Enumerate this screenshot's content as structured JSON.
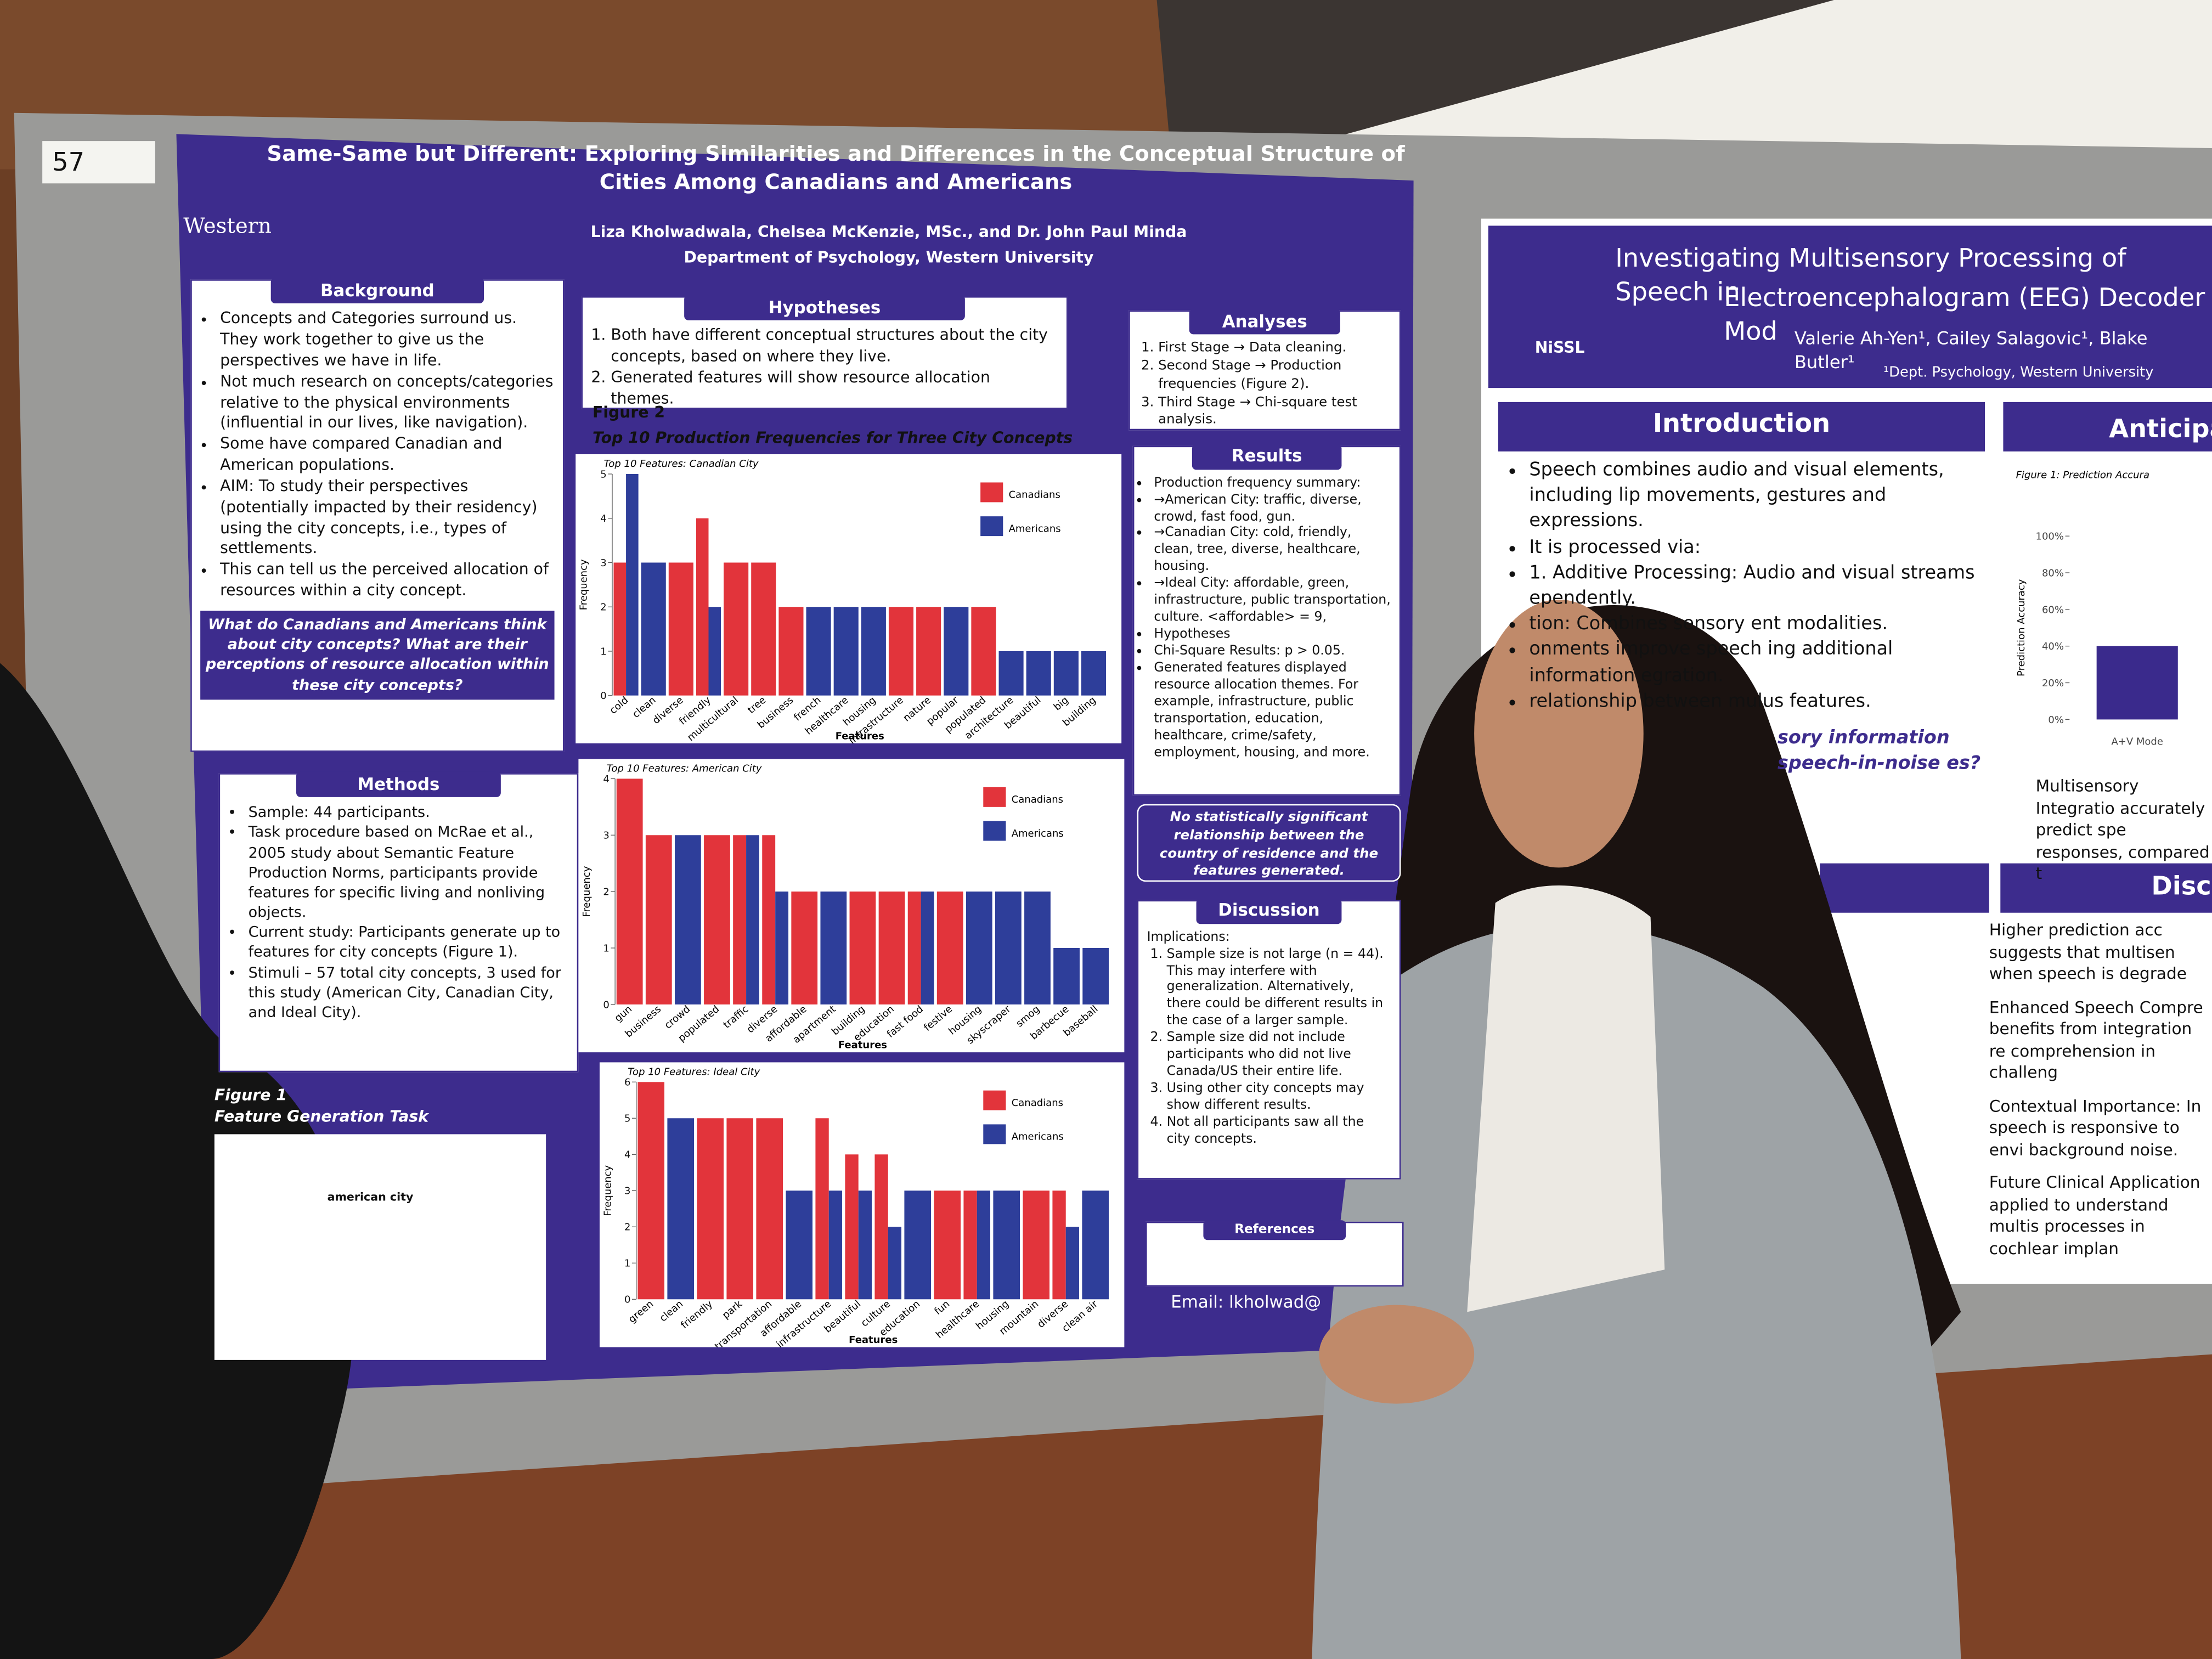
{
  "booth_number": "57",
  "left_poster": {
    "logo": "Western",
    "title": "Same-Same but Different: Exploring Similarities and Differences in the Conceptual Structure of Cities Among Canadians and Americans",
    "authors": "Liza Kholwadwala, Chelsea McKenzie, MSc., and Dr. John Paul Minda",
    "department": "Department of Psychology, Western University",
    "background": {
      "heading": "Background",
      "items": [
        "Concepts and Categories surround us. They work together to give us the perspectives we have in life.",
        "Not much research on concepts/categories relative to the physical environments (influential in our lives, like navigation).",
        "Some have compared Canadian and American populations.",
        "AIM: To study their perspectives (potentially impacted by their residency) using the city concepts, i.e., types of settlements.",
        "This can tell us the perceived allocation of resources within a city concept."
      ],
      "question": "What do Canadians and Americans think about city concepts? What are their perceptions of resource allocation within these city concepts?"
    },
    "hypotheses": {
      "heading": "Hypotheses",
      "items": [
        "Both have different conceptual structures about the city concepts, based on where they live.",
        "Generated features will show resource allocation themes."
      ]
    },
    "figure2": {
      "label": "Figure 2",
      "caption": "Top 10 Production Frequencies for Three City Concepts"
    },
    "analyses": {
      "heading": "Analyses",
      "items": [
        "First Stage → Data cleaning.",
        "Second Stage → Production frequencies (Figure 2).",
        "Third Stage → Chi-square test analysis."
      ]
    },
    "results": {
      "heading": "Results",
      "items": [
        "Production frequency summary:",
        "→American City: traffic, diverse, crowd, fast food, gun.",
        "→Canadian City: cold, friendly, clean, tree, diverse, healthcare, housing.",
        "→Ideal City: affordable, green, infrastructure, public transportation, culture. <affordable> = 9,",
        "Hypotheses",
        "Chi-Square Results: p > 0.05.",
        "Generated features displayed resource allocation themes. For example, infrastructure, public transportation, education, healthcare, crime/safety, employment, housing, and more."
      ]
    },
    "conclusion": "No statistically significant relationship between the country of residence and the features generated.",
    "discussion": {
      "heading": "Discussion",
      "intro": "Implications:",
      "items": [
        "Sample size is not large (n = 44). This may interfere with generalization. Alternatively, there could be different results in the case of a larger sample.",
        "Sample size did not include participants who did not live Canada/US their entire life.",
        "Using other city concepts may show different results.",
        "Not all participants saw all the city concepts."
      ]
    },
    "methods": {
      "heading": "Methods",
      "items": [
        "Sample: 44 participants.",
        "Task procedure based on McRae et al., 2005 study about Semantic Feature Production Norms, participants provide features for specific living and nonliving objects.",
        "Current study: Participants generate up to features for city concepts (Figure 1).",
        "Stimuli – 57 total city concepts, 3 used for this study (American City, Canadian City, and Ideal City)."
      ]
    },
    "figure1": {
      "label": "Figure 1",
      "caption": "Feature Generation Task",
      "prompt": "american city"
    },
    "references": {
      "heading": "References"
    },
    "email": "Email: lkholwad@"
  },
  "chart_data": [
    {
      "type": "bar",
      "title": "Top 10 Features: Canadian City",
      "x_label": "Features",
      "y_label": "Frequency",
      "categories": [
        "cold",
        "clean",
        "diverse",
        "friendly",
        "multicultural",
        "tree",
        "business",
        "french",
        "healthcare",
        "housing",
        "infrastructure",
        "nature",
        "popular",
        "populated",
        "architecture",
        "beautiful",
        "big",
        "building"
      ],
      "series": [
        {
          "name": "Canadians",
          "color": "#e2343b",
          "values": [
            3,
            null,
            3,
            4,
            3,
            3,
            2,
            null,
            null,
            null,
            2,
            2,
            null,
            2,
            null,
            null,
            null,
            null
          ]
        },
        {
          "name": "Americans",
          "color": "#2e3e9a",
          "values": [
            5,
            3,
            null,
            2,
            null,
            null,
            null,
            2,
            2,
            2,
            null,
            null,
            2,
            null,
            1,
            1,
            1,
            1
          ]
        }
      ],
      "ylim": [
        0,
        5
      ],
      "yticks": [
        0,
        1,
        2,
        3,
        4,
        5
      ]
    },
    {
      "type": "bar",
      "title": "Top 10 Features: American City",
      "x_label": "Features",
      "y_label": "Frequency",
      "categories": [
        "gun",
        "business",
        "crowd",
        "populated",
        "traffic",
        "diverse",
        "affordable",
        "apartment",
        "building",
        "education",
        "fast food",
        "festive",
        "housing",
        "skyscraper",
        "smog",
        "barbecue",
        "baseball"
      ],
      "series": [
        {
          "name": "Canadians",
          "color": "#e2343b",
          "values": [
            4,
            3,
            null,
            3,
            3,
            3,
            2,
            null,
            2,
            2,
            2,
            2,
            null,
            null,
            null,
            null,
            null
          ]
        },
        {
          "name": "Americans",
          "color": "#2e3e9a",
          "values": [
            null,
            null,
            3,
            null,
            3,
            2,
            null,
            2,
            null,
            null,
            2,
            null,
            2,
            2,
            2,
            1,
            1
          ]
        }
      ],
      "ylim": [
        0,
        4
      ],
      "yticks": [
        0,
        1,
        2,
        3,
        4
      ]
    },
    {
      "type": "bar",
      "title": "Top 10 Features: Ideal City",
      "x_label": "Features",
      "y_label": "Frequency",
      "categories": [
        "green",
        "clean",
        "friendly",
        "park",
        "public transportation",
        "affordable",
        "infrastructure",
        "beautiful",
        "culture",
        "education",
        "fun",
        "healthcare",
        "housing",
        "mountain",
        "diverse",
        "clean air"
      ],
      "series": [
        {
          "name": "Canadians",
          "color": "#e2343b",
          "values": [
            6,
            null,
            5,
            5,
            5,
            null,
            5,
            4,
            4,
            null,
            3,
            3,
            null,
            3,
            3,
            null
          ]
        },
        {
          "name": "Americans",
          "color": "#2e3e9a",
          "values": [
            null,
            5,
            null,
            null,
            null,
            3,
            3,
            3,
            2,
            3,
            null,
            3,
            3,
            null,
            2,
            3
          ]
        }
      ],
      "ylim": [
        0,
        6
      ],
      "yticks": [
        0,
        1,
        2,
        3,
        4,
        5,
        6
      ]
    },
    {
      "type": "bar",
      "title": "Figure 1: Prediction Accura",
      "y_label": "Prediction Accuracy",
      "categories": [
        "A+V Mode"
      ],
      "series": [
        {
          "name": "A+V",
          "color": "#3a2a8c",
          "values": [
            40
          ]
        }
      ],
      "ylim": [
        0,
        100
      ],
      "yticks": [
        {
          "value": 0,
          "label": "0%"
        },
        {
          "value": 20,
          "label": "20%"
        },
        {
          "value": 40,
          "label": "40%"
        },
        {
          "value": 60,
          "label": "60%"
        },
        {
          "value": 80,
          "label": "80%"
        },
        {
          "value": 100,
          "label": "100%"
        }
      ]
    }
  ],
  "right_poster": {
    "logo": "NiSSL",
    "title": [
      "Investigating Multisensory Processing of Speech in",
      "Electroencephalogram (EEG) Decoder Mod"
    ],
    "authors": "Valerie Ah-Yen¹, Cailey Salagovic¹, Blake Butler¹",
    "affiliation": "¹Dept. Psychology, Western University",
    "introduction": {
      "heading": "Introduction",
      "items": [
        "Speech combines audio and visual elements, including lip movements, gestures and expressions.",
        "It is processed via:",
        "1. Additive Processing: Audio and visual streams ependently.",
        "tion: Combines sensory ent modalities.",
        "onments improve speech ing additional information egration.",
        "relationship between mulus features."
      ],
      "question": "sory information speech-in-noise es?"
    },
    "anticipated": {
      "heading": "Anticipat",
      "note": "Multisensory Integratio accurately predict spe responses, compared t"
    },
    "discussion": {
      "heading": "Discu",
      "items": [
        "Higher prediction acc suggests that multisen when speech is degrade",
        "Enhanced Speech Compre benefits from integration re comprehension in challeng",
        "Contextual Importance: In speech is responsive to envi background noise.",
        "Future Clinical Application applied to understand multis processes in cochlear implan"
      ]
    }
  }
}
